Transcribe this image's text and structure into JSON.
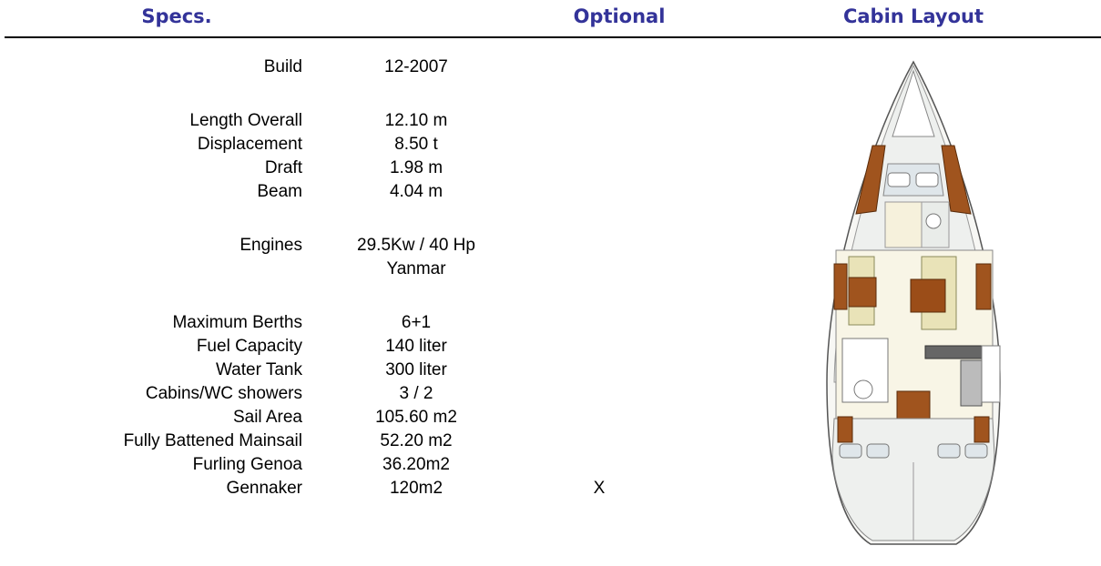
{
  "header": {
    "specs": "Specs.",
    "optional": "Optional",
    "cabin_layout": "Cabin Layout"
  },
  "spec_groups": [
    [
      {
        "label": "Build",
        "value": [
          "12-2007"
        ]
      }
    ],
    [
      {
        "label": "Length Overall",
        "value": [
          "12.10 m"
        ]
      },
      {
        "label": "Displacement",
        "value": [
          "8.50 t"
        ]
      },
      {
        "label": "Draft",
        "value": [
          "1.98 m"
        ]
      },
      {
        "label": "Beam",
        "value": [
          "4.04 m"
        ]
      }
    ],
    [
      {
        "label": "Engines",
        "value": [
          "29.5Kw / 40 Hp",
          "Yanmar"
        ]
      }
    ],
    [
      {
        "label": "Maximum Berths",
        "value": [
          "6+1"
        ]
      },
      {
        "label": "Fuel Capacity",
        "value": [
          "140 liter"
        ]
      },
      {
        "label": "Water Tank",
        "value": [
          "300 liter"
        ]
      },
      {
        "label": "Cabins/WC showers",
        "value": [
          "3 / 2"
        ]
      },
      {
        "label": "Sail Area",
        "value": [
          "105.60 m2"
        ]
      },
      {
        "label": "Fully Battened Mainsail",
        "value": [
          "52.20 m2"
        ]
      },
      {
        "label": "Furling Genoa",
        "value": [
          "36.20m2"
        ]
      },
      {
        "label": "Gennaker",
        "value": [
          "120m2"
        ],
        "optional": "X"
      }
    ]
  ]
}
